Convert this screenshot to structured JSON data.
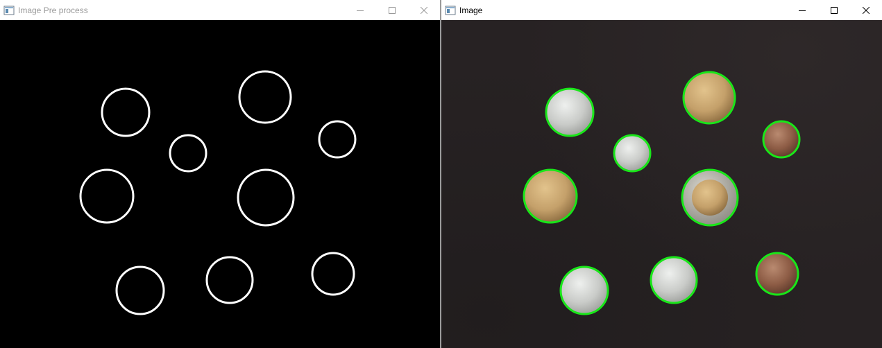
{
  "windows": {
    "left": {
      "title": "Image Pre process",
      "active": false
    },
    "right": {
      "title": "Image",
      "active": true
    }
  },
  "colors": {
    "edge_stroke": "#ffffff",
    "detection_circle": "#19e619",
    "coin_background": "#272223"
  },
  "icons": {
    "app": "opencv-window-icon",
    "minimize": "minimize-icon",
    "maximize": "maximize-icon",
    "close": "close-icon"
  }
}
